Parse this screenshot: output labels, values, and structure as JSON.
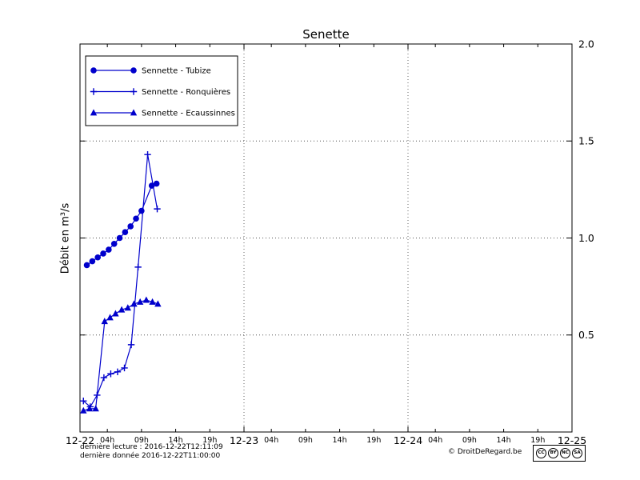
{
  "chart_data": {
    "type": "line",
    "title": "Senette",
    "ylabel": "Débit en m³/s",
    "x_days": [
      "12-22",
      "12-23",
      "12-24",
      "12-25"
    ],
    "hour_ticks": [
      "04h",
      "09h",
      "14h",
      "19h"
    ],
    "hour_tick_offsets": [
      4,
      9,
      14,
      19
    ],
    "xlim_hours": [
      0,
      72
    ],
    "ylim": [
      0,
      2.0
    ],
    "y_ticks": [
      0.5,
      1.0,
      1.5,
      2.0
    ],
    "grid": {
      "h_lines": [
        0.5,
        1.0,
        1.5
      ],
      "v_lines_hours": [
        24,
        48
      ]
    },
    "color": "#0000cc",
    "legend_position": "top-left",
    "series": [
      {
        "name": "Sennette - Tubize",
        "marker": "circle",
        "hours": [
          1,
          1.8,
          2.6,
          3.4,
          4.2,
          5,
          5.8,
          6.6,
          7.4,
          8.2,
          9,
          10.5,
          11.2
        ],
        "values": [
          0.86,
          0.88,
          0.9,
          0.92,
          0.94,
          0.97,
          1.0,
          1.03,
          1.06,
          1.1,
          1.14,
          1.27,
          1.28
        ]
      },
      {
        "name": "Sennette - Ronquières",
        "marker": "plus",
        "hours": [
          0.5,
          1.5,
          2.5,
          3.5,
          4.5,
          5.5,
          6.5,
          7.5,
          8.5,
          9.9,
          11.3
        ],
        "values": [
          0.16,
          0.13,
          0.19,
          0.28,
          0.3,
          0.31,
          0.33,
          0.45,
          0.85,
          1.43,
          1.15
        ]
      },
      {
        "name": "Sennette - Ecaussinnes",
        "marker": "triangle",
        "hours": [
          0.5,
          1.4,
          2.3,
          3.6,
          4.4,
          5.2,
          6.1,
          7,
          7.9,
          8.8,
          9.7,
          10.6,
          11.4
        ],
        "values": [
          0.11,
          0.12,
          0.12,
          0.57,
          0.59,
          0.61,
          0.63,
          0.64,
          0.66,
          0.67,
          0.68,
          0.67,
          0.66
        ]
      }
    ]
  },
  "footer": {
    "last_read": "dernière lecture : 2016-12-22T12:11:09",
    "last_data": "dernière donnée  2016-12-22T11:00:00",
    "copyright": "© DroitDeRegard.be",
    "license": {
      "label": "CC BY-NC-SA",
      "parts": [
        "CC",
        "BY",
        "NC",
        "SA"
      ]
    }
  }
}
